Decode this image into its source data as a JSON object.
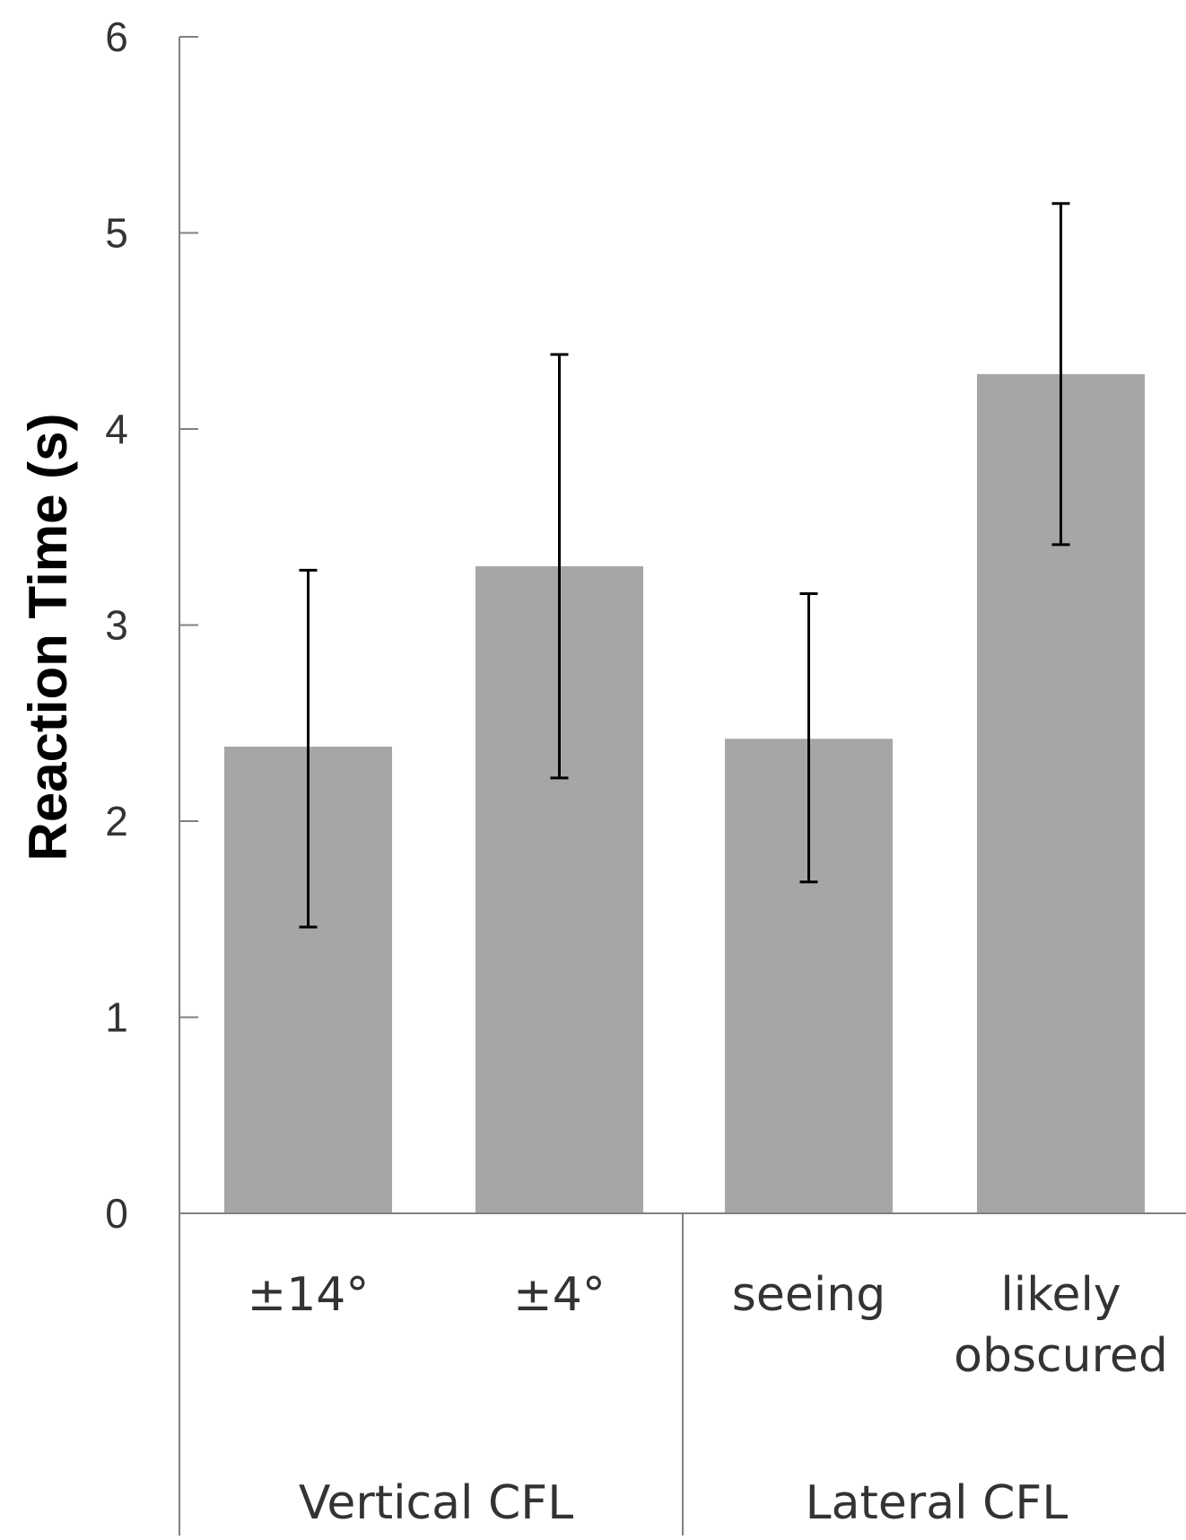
{
  "chart_data": {
    "type": "bar",
    "title": "",
    "xlabel": "",
    "ylabel": "Reaction Time (s)",
    "ylim": [
      0,
      6
    ],
    "yticks": [
      "0",
      "1",
      "2",
      "3",
      "4",
      "5",
      "6"
    ],
    "grid": false,
    "legend": "none",
    "bar_color": "#a6a6a6",
    "axis_color": "#808080",
    "errorbar_color": "#000000",
    "categories": [
      "±14°",
      "±4°",
      "seeing",
      "likely obscured"
    ],
    "category_lines": [
      [
        "±14°"
      ],
      [
        "±4°"
      ],
      [
        "seeing"
      ],
      [
        "likely",
        "obscured"
      ]
    ],
    "groups": [
      {
        "label": "Vertical CFL",
        "categories": [
          "±14°",
          "±4°"
        ]
      },
      {
        "label": "Lateral CFL",
        "categories": [
          "seeing",
          "likely obscured"
        ]
      }
    ],
    "series": [
      {
        "values": [
          2.38,
          3.3,
          2.42,
          4.28
        ],
        "error_low": [
          1.46,
          2.22,
          1.69,
          3.41
        ],
        "error_high": [
          3.28,
          4.38,
          3.16,
          5.15
        ]
      }
    ]
  }
}
